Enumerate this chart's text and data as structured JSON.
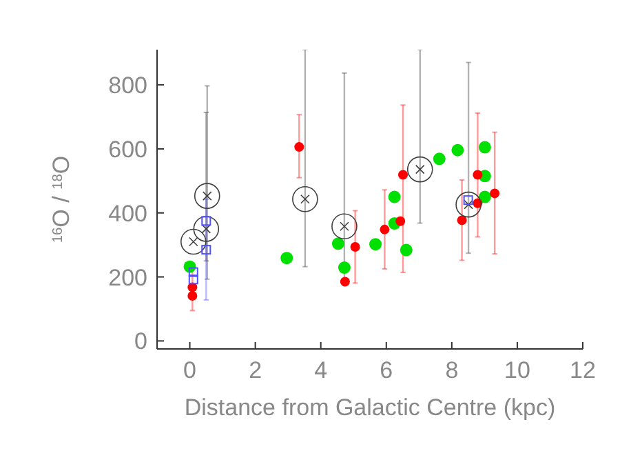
{
  "chart_data": {
    "type": "scatter",
    "xlabel": "Distance from Galactic Centre (kpc)",
    "ylabel": "$^{16}$O / $^{18}$O",
    "xlim": [
      -1,
      12
    ],
    "xticks": [
      0,
      2,
      4,
      6,
      8,
      10,
      12
    ],
    "ylim": [
      -25,
      910
    ],
    "yticks": [
      0,
      200,
      400,
      600,
      800
    ],
    "series": [
      {
        "color": "#00e000",
        "marker": "circle",
        "x": [
          0.0,
          2.96,
          4.53,
          4.72,
          5.67,
          6.25,
          6.25,
          6.61,
          7.62,
          8.18,
          9.01,
          9.01,
          9.01
        ],
        "values": [
          232,
          259,
          304,
          229,
          302,
          450,
          367,
          284,
          569,
          596,
          605,
          515,
          450
        ]
      },
      {
        "color": "#ff0000",
        "marker": "circle",
        "x": [
          0.08,
          0.08,
          3.34,
          4.74,
          5.05,
          5.95,
          6.43,
          6.51,
          8.31,
          8.79,
          8.79,
          9.31
        ],
        "values": [
          168,
          141,
          606,
          185,
          294,
          348,
          374,
          519,
          377,
          430,
          519,
          461
        ],
        "errors": [
          [
            95,
            230
          ],
          null,
          [
            510,
            707
          ],
          null,
          [
            181,
            407
          ],
          [
            225,
            472
          ],
          null,
          [
            214,
            737
          ],
          [
            252,
            503
          ],
          null,
          [
            325,
            712
          ],
          [
            272,
            652
          ]
        ]
      },
      {
        "color": "#404040",
        "x": [
          0.11,
          0.5,
          0.53,
          3.52,
          4.72,
          7.03,
          8.51
        ],
        "values": [
          310,
          350,
          453,
          443,
          358,
          536,
          426
        ],
        "errors": [
          null,
          [
            250,
            714
          ],
          [
            193,
            797
          ],
          [
            232,
            910
          ],
          [
            189,
            837
          ],
          [
            368,
            910
          ],
          [
            274,
            870
          ]
        ]
      },
      {
        "color": "#5050ff",
        "marker": "square",
        "x": [
          0.11,
          0.11,
          0.5,
          0.5,
          8.5
        ],
        "values": [
          192,
          215,
          375,
          285,
          440
        ],
        "errors": [
          null,
          null,
          [
            128,
            443
          ],
          null,
          null
        ]
      }
    ]
  }
}
